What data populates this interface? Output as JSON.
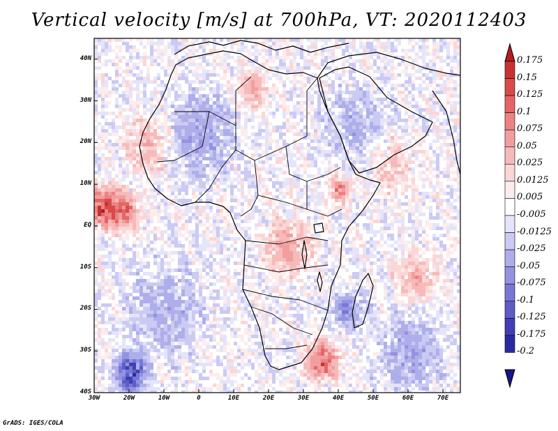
{
  "title": "Vertical velocity [m/s] at 700hPa, VT: 2020112403",
  "footer": "GrADS: IGES/COLA",
  "chart_data": {
    "type": "heatmap",
    "title": "Vertical velocity [m/s] at 700hPa, VT: 2020112403",
    "variable": "Vertical velocity",
    "units": "m/s",
    "level": "700hPa",
    "valid_time": "2020112403",
    "xlim": [
      -30,
      75
    ],
    "ylim": [
      -40,
      45
    ],
    "x_ticks": [
      {
        "value": -30,
        "label": "30W"
      },
      {
        "value": -20,
        "label": "20W"
      },
      {
        "value": -10,
        "label": "10W"
      },
      {
        "value": 0,
        "label": "0"
      },
      {
        "value": 10,
        "label": "10E"
      },
      {
        "value": 20,
        "label": "20E"
      },
      {
        "value": 30,
        "label": "30E"
      },
      {
        "value": 40,
        "label": "40E"
      },
      {
        "value": 50,
        "label": "50E"
      },
      {
        "value": 60,
        "label": "60E"
      },
      {
        "value": 70,
        "label": "70E"
      }
    ],
    "y_ticks": [
      {
        "value": 40,
        "label": "40N"
      },
      {
        "value": 30,
        "label": "30N"
      },
      {
        "value": 20,
        "label": "20N"
      },
      {
        "value": 10,
        "label": "10N"
      },
      {
        "value": 0,
        "label": "EQ"
      },
      {
        "value": -10,
        "label": "10S"
      },
      {
        "value": -20,
        "label": "20S"
      },
      {
        "value": -30,
        "label": "30S"
      },
      {
        "value": -40,
        "label": "40S"
      }
    ],
    "colorbar": {
      "levels": [
        "0.175",
        "0.15",
        "0.125",
        "0.1",
        "0.075",
        "0.05",
        "0.025",
        "0.0125",
        "0.005",
        "-0.005",
        "-0.0125",
        "-0.025",
        "-0.05",
        "-0.075",
        "-0.1",
        "-0.125",
        "-0.175",
        "-0.2"
      ],
      "colors": [
        "#b11f1f",
        "#c83232",
        "#d94a4a",
        "#e46565",
        "#ec8282",
        "#f29e9e",
        "#f7baba",
        "#fbd6d6",
        "#fdecec",
        "#ffffff",
        "#e4e4fa",
        "#cacaf3",
        "#aeaeea",
        "#9393e0",
        "#7878d4",
        "#5d5dc6",
        "#4040b4",
        "#2a2aa0",
        "#16168a"
      ]
    },
    "patterns": {
      "land_mask_bias": "weak descent (blue) over Sahara, Arabia and Indian Ocean",
      "strong_ascent_regions": [
        "Gulf of Guinea near 5N 30W",
        "Ethiopian highlands",
        "Southeast Africa near 30S 35E",
        "Central Africa 5S 25E"
      ],
      "strong_descent_regions": [
        "Off Southwest Africa near 35S 20W",
        "Mozambique Channel"
      ]
    }
  }
}
